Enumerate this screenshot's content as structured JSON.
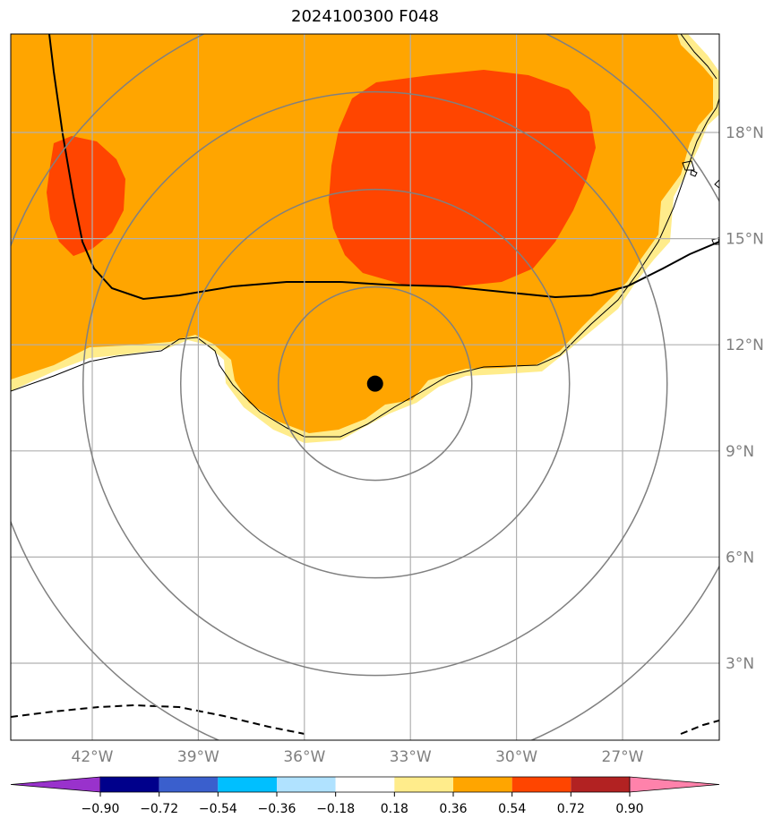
{
  "title": "2024100300 F048",
  "map": {
    "lon_ticks": [
      {
        "lon": -42,
        "label": "42°W"
      },
      {
        "lon": -39,
        "label": "39°W"
      },
      {
        "lon": -36,
        "label": "36°W"
      },
      {
        "lon": -33,
        "label": "33°W"
      },
      {
        "lon": -30,
        "label": "30°W"
      },
      {
        "lon": -27,
        "label": "27°W"
      }
    ],
    "lat_ticks": [
      {
        "lat": 3,
        "label": "3°N"
      },
      {
        "lat": 6,
        "label": "6°N"
      },
      {
        "lat": 9,
        "label": "9°N"
      },
      {
        "lat": 12,
        "label": "12°N"
      },
      {
        "lat": 15,
        "label": "15°N"
      },
      {
        "lat": 18,
        "label": "18°N"
      }
    ],
    "storm_center": {
      "lon": -34.0,
      "lat": 10.9
    },
    "colors": {
      "gridline": "#b0b0b0",
      "range_ring": "#808080",
      "storm_marker": "#000000"
    }
  },
  "colorbar": {
    "labels": [
      "−0.90",
      "−0.72",
      "−0.54",
      "−0.36",
      "−0.18",
      "0.18",
      "0.36",
      "0.54",
      "0.72",
      "0.90"
    ],
    "colors": [
      "#9932cc",
      "#00008b",
      "#3a5fcd",
      "#00bfff",
      "#b0e2ff",
      "#ffffff",
      "#ffec8b",
      "#ffa500",
      "#ff4500",
      "#b22222",
      "#ff82ab"
    ]
  }
}
